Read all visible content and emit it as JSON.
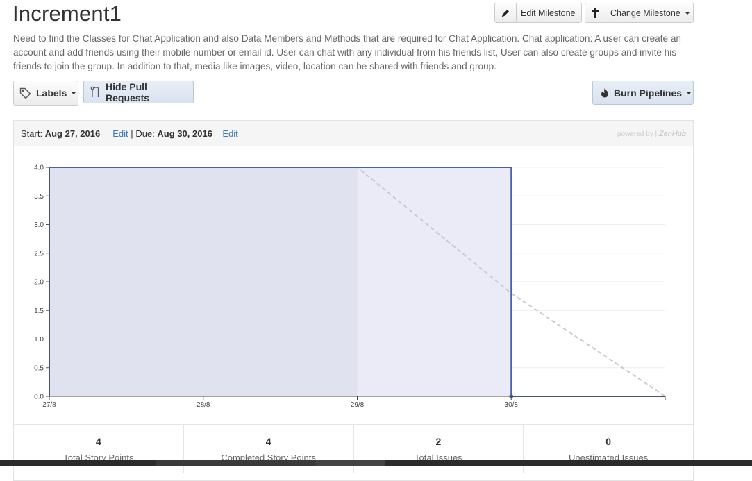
{
  "milestone": {
    "title": "Increment1",
    "description": "Need to find the Classes for Chat Application and also Data Members and Methods that are required for Chat Application. Chat application: A user can create an account and add friends using their mobile number or email id. User can chat with any individual from his friends list, User can also create groups and invite his friends to join the group. In addition to that, media like images, video, location can be shared with friends and group."
  },
  "toolbar": {
    "edit_milestone": "Edit Milestone",
    "change_milestone": "Change Milestone",
    "labels": "Labels",
    "hide_pull_requests": "Hide Pull Requests",
    "burn_pipelines": "Burn Pipelines"
  },
  "panel": {
    "start_label": "Start:",
    "start_date": "Aug 27, 2016",
    "edit_start": "Edit",
    "separator": "|",
    "due_label": "Due:",
    "due_date": "Aug 30, 2016",
    "edit_due": "Edit",
    "powered_by": "powered by |",
    "zenhub": "ZenHub"
  },
  "chart_data": {
    "type": "area",
    "x": [
      "27/8",
      "28/8",
      "29/8",
      "30/8",
      ""
    ],
    "ylim": [
      0,
      4
    ],
    "y_ticks": [
      "0.0",
      "0.5",
      "1.0",
      "1.5",
      "2.0",
      "2.5",
      "3.0",
      "3.5",
      "4.0"
    ],
    "series": [
      {
        "values": [
          4,
          4,
          4,
          0,
          0
        ],
        "color": "#4a5fa8"
      },
      {
        "values": [
          4,
          4,
          4,
          1.8,
          0
        ],
        "color": "#c9c9c9",
        "dashed": true
      }
    ],
    "shaded_past_until": "29/8",
    "grid": true
  },
  "stats": [
    {
      "value": "4",
      "label": "Total Story Points"
    },
    {
      "value": "4",
      "label": "Completed Story Points"
    },
    {
      "value": "2",
      "label": "Total Issues"
    },
    {
      "value": "0",
      "label": "Unestimated Issues"
    }
  ],
  "colors": {
    "link": "#4078c0",
    "line": "#4a5fa8",
    "area": "#eaebf6",
    "area_past": "#e0e2f0"
  }
}
